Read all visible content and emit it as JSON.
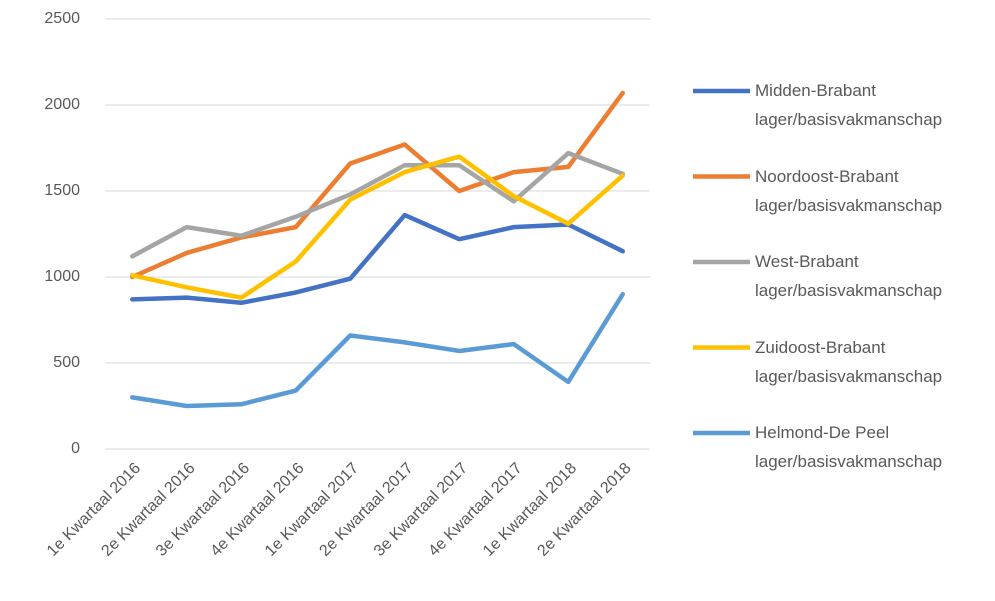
{
  "chart_data": {
    "type": "line",
    "categories": [
      "1e Kwartaal 2016",
      "2e Kwartaal 2016",
      "3e Kwartaal 2016",
      "4e Kwartaal 2016",
      "1e Kwartaal 2017",
      "2e Kwartaal 2017",
      "3e Kwartaal 2017",
      "4e Kwartaal 2017",
      "1e Kwartaal 2018",
      "2e Kwartaal 2018"
    ],
    "series": [
      {
        "name": "Midden-Brabant lager/basisvakmanschap",
        "color": "#4472c4",
        "values": [
          870,
          880,
          850,
          910,
          990,
          1360,
          1220,
          1290,
          1305,
          1150
        ]
      },
      {
        "name": "Noordoost-Brabant lager/basisvakmanschap",
        "color": "#ed7d31",
        "values": [
          1000,
          1140,
          1230,
          1290,
          1660,
          1770,
          1500,
          1610,
          1640,
          2070
        ]
      },
      {
        "name": "West-Brabant lager/basisvakmanschap",
        "color": "#a5a5a5",
        "values": [
          1120,
          1290,
          1240,
          1350,
          1480,
          1650,
          1650,
          1440,
          1720,
          1600
        ]
      },
      {
        "name": "Zuidoost-Brabant lager/basisvakmanschap",
        "color": "#ffc000",
        "values": [
          1010,
          940,
          880,
          1090,
          1450,
          1610,
          1700,
          1470,
          1310,
          1590
        ]
      },
      {
        "name": "Helmond-De Peel lager/basisvakmanschap",
        "color": "#5b9bd5",
        "values": [
          300,
          250,
          260,
          340,
          660,
          620,
          570,
          610,
          390,
          900
        ]
      }
    ],
    "ylim": [
      0,
      2500
    ],
    "yticks": [
      0,
      500,
      1000,
      1500,
      2000,
      2500
    ],
    "grid": true,
    "legend": "right"
  }
}
